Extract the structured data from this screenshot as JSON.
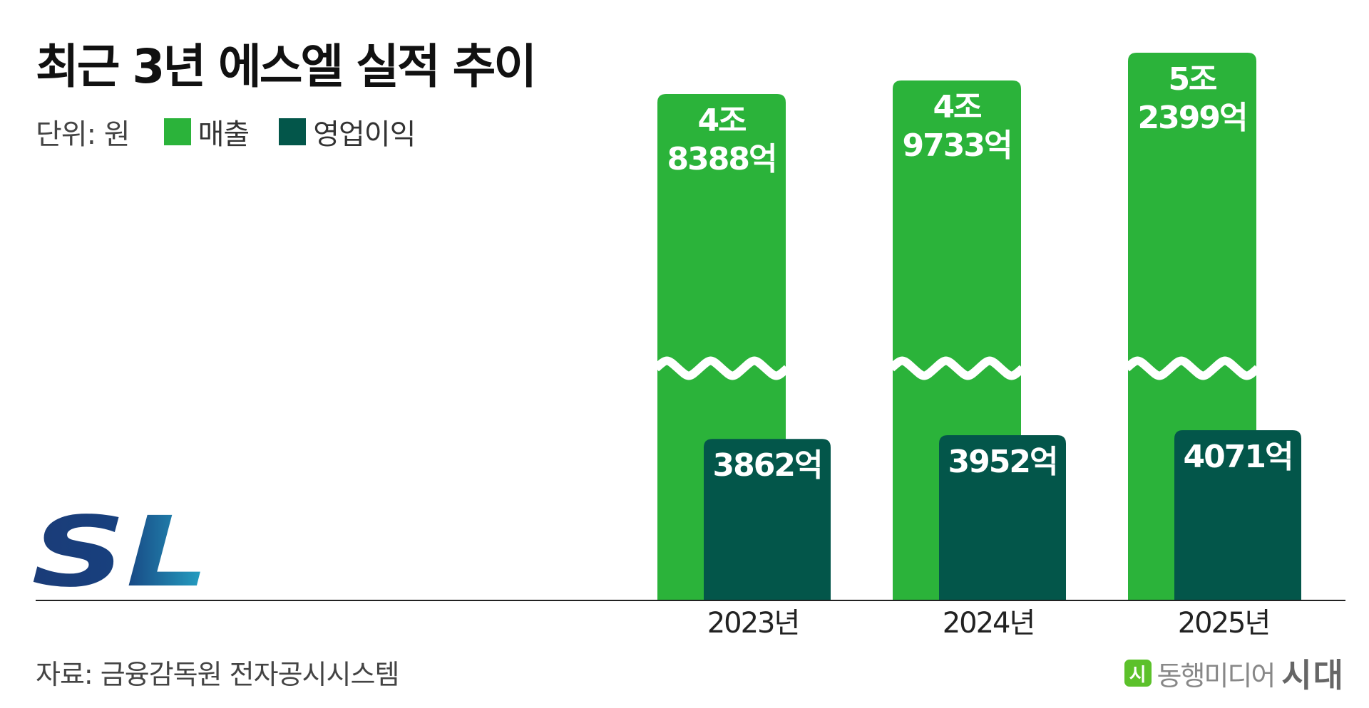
{
  "header": {
    "title": "최근 3년 에스엘 실적 추이"
  },
  "legend": {
    "unit_label": "단위: 원",
    "items": [
      {
        "label": "매출",
        "color": "#2bb33a"
      },
      {
        "label": "영업이익",
        "color": "#03564a"
      }
    ]
  },
  "logo": {
    "text": "SL",
    "color": "#1b3c78",
    "icon": "sl-company-logo"
  },
  "footer": {
    "source": "자료: 금융감독원 전자공시시스템",
    "brand_mark": "시",
    "brand_mark_color": "#5cc12b",
    "brand_text": "동행미디어",
    "brand_strong": "시대"
  },
  "chart_data": {
    "type": "bar",
    "title": "최근 3년 에스엘 실적 추이",
    "categories": [
      "2023년",
      "2024년",
      "2025년"
    ],
    "axis_break": true,
    "series": [
      {
        "name": "매출",
        "color": "#2bb33a",
        "values": [
          48388,
          49733,
          52399
        ],
        "value_unit": "억원",
        "labels": [
          [
            "4조",
            "8388억"
          ],
          [
            "4조",
            "9733억"
          ],
          [
            "5조",
            "2399억"
          ]
        ]
      },
      {
        "name": "영업이익",
        "color": "#03564a",
        "values": [
          3862,
          3952,
          4071
        ],
        "value_unit": "억원",
        "labels": [
          [
            "3862억"
          ],
          [
            "3952억"
          ],
          [
            "4071억"
          ]
        ]
      }
    ],
    "legend_position": "top-left",
    "grid": false
  }
}
